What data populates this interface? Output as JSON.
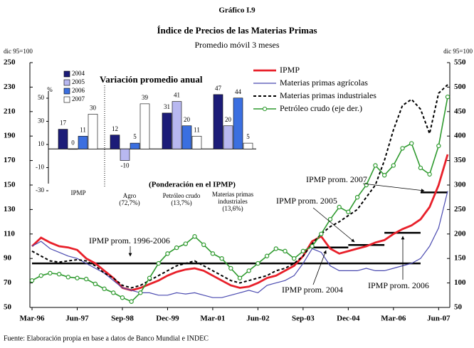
{
  "chart_data": [
    {
      "type": "line",
      "chart_number": "Gráfico I.9",
      "title": "Índice de Precios de las Materias Primas",
      "subtitle": "Promedio móvil 3 meses",
      "ylabel": "dic 95=100",
      "y2label": "dic 95=100",
      "source": "Fuente: Elaboración propia en base a datos de Banco Mundial e INDEC",
      "categories": [
        "Mar-96",
        null,
        null,
        null,
        null,
        "Jun-97",
        null,
        null,
        null,
        null,
        "Sep-98",
        null,
        null,
        null,
        null,
        "Dec-99",
        null,
        null,
        null,
        null,
        "Mar-01",
        null,
        null,
        null,
        null,
        "Jun-02",
        null,
        null,
        null,
        null,
        "Sep-03",
        null,
        null,
        null,
        null,
        "Dec-04",
        null,
        null,
        null,
        null,
        "Mar-06",
        null,
        null,
        null,
        null,
        "Jun-07",
        null
      ],
      "ylim": [
        50,
        250
      ],
      "yticks": [
        50,
        70,
        90,
        110,
        130,
        150,
        170,
        190,
        210,
        230,
        250
      ],
      "y2lim": [
        50,
        550
      ],
      "y2ticks": [
        50,
        100,
        150,
        200,
        250,
        300,
        350,
        400,
        450,
        500,
        550
      ],
      "series": [
        {
          "name": "IPMP",
          "color": "#e8202a",
          "values": [
            100,
            107,
            103,
            100,
            99,
            97,
            90,
            86,
            80,
            74,
            66,
            64,
            66,
            69,
            72,
            76,
            79,
            81,
            82,
            80,
            76,
            72,
            68,
            66,
            67,
            70,
            74,
            76,
            80,
            84,
            92,
            104,
            108,
            98,
            94,
            96,
            98,
            100,
            103,
            105,
            110,
            114,
            117,
            122,
            132,
            150,
            175
          ]
        },
        {
          "name": "Materias primas agrícolas",
          "color": "#4a4ab0",
          "values": [
            100,
            104,
            98,
            95,
            92,
            90,
            86,
            82,
            78,
            72,
            66,
            64,
            62,
            62,
            60,
            60,
            62,
            61,
            62,
            60,
            58,
            58,
            60,
            62,
            64,
            62,
            68,
            70,
            72,
            76,
            86,
            98,
            95,
            84,
            80,
            80,
            80,
            82,
            80,
            80,
            82,
            84,
            86,
            90,
            100,
            115,
            145
          ]
        },
        {
          "name": "Materias primas industriales",
          "color": "#000000",
          "values": [
            96,
            92,
            88,
            87,
            88,
            89,
            88,
            84,
            78,
            74,
            68,
            66,
            68,
            72,
            76,
            80,
            84,
            86,
            88,
            84,
            80,
            76,
            72,
            70,
            72,
            74,
            76,
            80,
            82,
            86,
            92,
            102,
            110,
            116,
            120,
            125,
            130,
            140,
            150,
            170,
            195,
            215,
            220,
            212,
            192,
            225,
            232
          ]
        },
        {
          "name": "Petróleo crudo (eje der.)",
          "color": "#2e9a2e",
          "axis": "y2",
          "values": [
            105,
            115,
            120,
            118,
            112,
            110,
            108,
            98,
            88,
            80,
            70,
            62,
            80,
            110,
            140,
            160,
            172,
            180,
            195,
            178,
            160,
            150,
            130,
            110,
            125,
            140,
            155,
            170,
            165,
            150,
            165,
            175,
            200,
            230,
            255,
            245,
            275,
            300,
            340,
            320,
            340,
            375,
            385,
            335,
            322,
            380,
            480
          ]
        }
      ],
      "reference_lines": [
        {
          "label": "IPMP prom. 1996-2006",
          "value": 86
        },
        {
          "label": "IPMP prom. 2004",
          "value": 99
        },
        {
          "label": "IPMP prom. 2005",
          "value": 101
        },
        {
          "label": "IPMP prom. 2006",
          "value": 111
        },
        {
          "label": "IPMP prom. 2007",
          "value": 144
        }
      ]
    },
    {
      "type": "bar",
      "title": "Variación promedio anual",
      "ylabel": "%",
      "note": "(Ponderación en el IPMP)",
      "categories": [
        [
          "IPMP"
        ],
        [
          "Agro",
          "(72,7%)"
        ],
        [
          "Petróleo crudo",
          "(13,7%)"
        ],
        [
          "Materias primas",
          "industriales",
          "(13,6%)"
        ]
      ],
      "ylim": [
        -30,
        50
      ],
      "yticks": [
        -30,
        -10,
        10,
        30,
        50
      ],
      "series": [
        {
          "name": "2004",
          "color": "#1c1c78",
          "values": [
            17,
            12,
            31,
            47
          ]
        },
        {
          "name": "2005",
          "color": "#b8b8f0",
          "values": [
            0,
            -10,
            41,
            20
          ]
        },
        {
          "name": "2006",
          "color": "#3b6fe0",
          "values": [
            11,
            5,
            20,
            44
          ]
        },
        {
          "name": "2007",
          "color": "#ffffff",
          "values": [
            30,
            39,
            11,
            5
          ]
        }
      ]
    }
  ]
}
